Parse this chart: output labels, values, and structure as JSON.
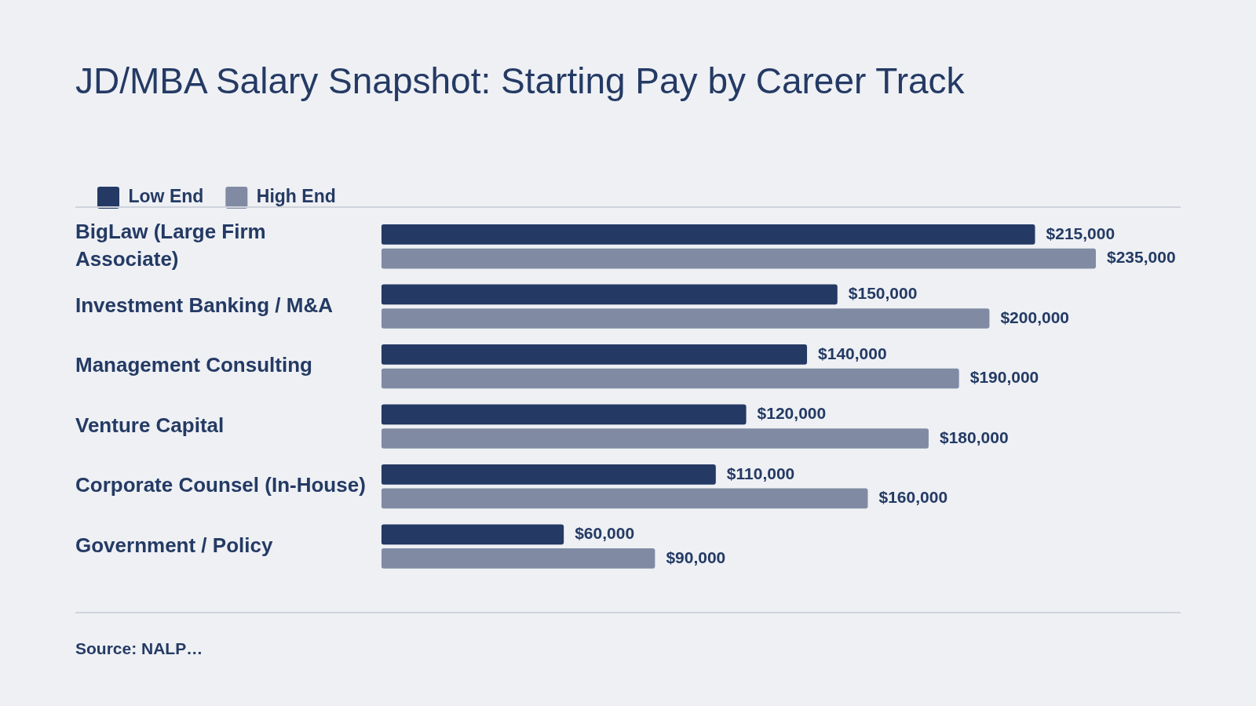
{
  "chart_data": {
    "type": "bar",
    "orientation": "horizontal",
    "title": "JD/MBA Salary Snapshot: Starting Pay by Career Track",
    "categories": [
      "BigLaw (Large Firm Associate)",
      "Investment Banking / M&A",
      "Management Consulting",
      "Venture Capital",
      "Corporate Counsel (In-House)",
      "Government / Policy"
    ],
    "series": [
      {
        "name": "Low End",
        "color": "#243a64",
        "values": [
          215000,
          150000,
          140000,
          120000,
          110000,
          60000
        ],
        "value_labels": [
          "$215,000",
          "$150,000",
          "$140,000",
          "$120,000",
          "$110,000",
          "$60,000"
        ]
      },
      {
        "name": "High End",
        "color": "#808ba3",
        "values": [
          235000,
          200000,
          190000,
          180000,
          160000,
          90000
        ],
        "value_labels": [
          "$235,000",
          "$200,000",
          "$190,000",
          "$180,000",
          "$160,000",
          "$90,000"
        ]
      }
    ],
    "legend": "top left",
    "grid": false,
    "tick_labels": "y",
    "annotations": [
      "Source: NALP…"
    ]
  }
}
